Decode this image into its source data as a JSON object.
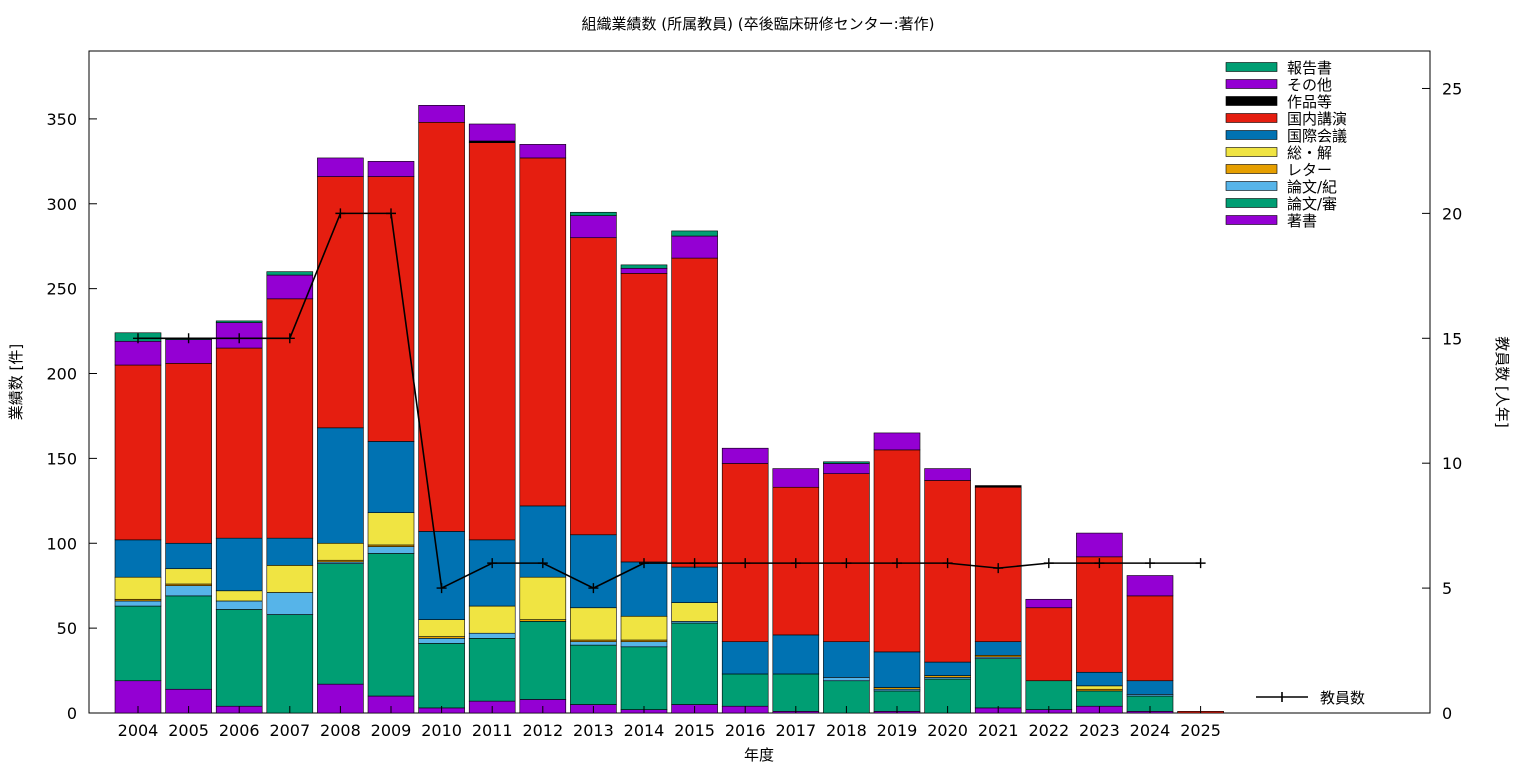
{
  "chart_data": {
    "type": "bar",
    "stacked": true,
    "title": "組織業績数 (所属教員) (卒後臨床研修センター:著作)",
    "xlabel": "年度",
    "ylabel": "業績数 [件]",
    "y2label": "教員数 [人年]",
    "ylim": [
      0,
      390
    ],
    "y2lim": [
      0,
      26.5
    ],
    "yticks": [
      0,
      50,
      100,
      150,
      200,
      250,
      300,
      350
    ],
    "y2ticks": [
      0,
      5,
      10,
      15,
      20,
      25
    ],
    "grid": false,
    "legend_position": "top-right",
    "categories": [
      "2004",
      "2005",
      "2006",
      "2007",
      "2008",
      "2009",
      "2010",
      "2011",
      "2012",
      "2013",
      "2014",
      "2015",
      "2016",
      "2017",
      "2018",
      "2019",
      "2020",
      "2021",
      "2022",
      "2023",
      "2024",
      "2025"
    ],
    "series": [
      {
        "name": "著書",
        "color": "#9400d3",
        "values": [
          19,
          14,
          4,
          0,
          17,
          10,
          3,
          7,
          8,
          5,
          2,
          5,
          4,
          1,
          0,
          1,
          0,
          3,
          2,
          4,
          1,
          0
        ]
      },
      {
        "name": "論文/審",
        "color": "#009e73",
        "values": [
          44,
          55,
          57,
          58,
          71,
          84,
          38,
          37,
          46,
          35,
          37,
          48,
          19,
          22,
          19,
          12,
          20,
          29,
          17,
          9,
          9,
          0
        ]
      },
      {
        "name": "論文/紀",
        "color": "#56b4e9",
        "values": [
          3,
          6,
          5,
          13,
          1,
          4,
          3,
          3,
          0,
          2,
          3,
          1,
          0,
          0,
          2,
          1,
          1,
          1,
          0,
          0,
          1,
          0
        ]
      },
      {
        "name": "レター",
        "color": "#e69f00",
        "values": [
          1,
          1,
          0,
          0,
          1,
          1,
          1,
          0,
          1,
          1,
          1,
          0,
          0,
          0,
          0,
          1,
          1,
          1,
          0,
          1,
          0,
          0
        ]
      },
      {
        "name": "総・解",
        "color": "#f0e442",
        "values": [
          13,
          9,
          6,
          16,
          10,
          19,
          10,
          16,
          25,
          19,
          14,
          11,
          0,
          0,
          0,
          0,
          0,
          0,
          0,
          2,
          0,
          0
        ]
      },
      {
        "name": "国際会議",
        "color": "#0072b2",
        "values": [
          22,
          15,
          31,
          16,
          68,
          42,
          52,
          39,
          42,
          43,
          32,
          21,
          19,
          23,
          21,
          21,
          8,
          8,
          0,
          8,
          8,
          0
        ]
      },
      {
        "name": "国内講演",
        "color": "#e51e10",
        "values": [
          103,
          106,
          112,
          141,
          148,
          156,
          241,
          234,
          205,
          175,
          170,
          182,
          105,
          87,
          99,
          119,
          107,
          91,
          43,
          68,
          50,
          1
        ]
      },
      {
        "name": "作品等",
        "color": "#000000",
        "values": [
          0,
          0,
          0,
          0,
          0,
          0,
          0,
          1,
          0,
          0,
          0,
          0,
          0,
          0,
          0,
          0,
          0,
          1,
          0,
          0,
          0,
          0
        ]
      },
      {
        "name": "その他",
        "color": "#9400d3",
        "values": [
          14,
          14,
          15,
          14,
          11,
          9,
          10,
          10,
          8,
          13,
          3,
          13,
          9,
          11,
          6,
          10,
          7,
          0,
          5,
          14,
          12,
          0
        ]
      },
      {
        "name": "報告書",
        "color": "#009e73",
        "values": [
          5,
          1,
          1,
          2,
          0,
          0,
          0,
          0,
          0,
          2,
          2,
          3,
          0,
          0,
          1,
          0,
          0,
          0,
          0,
          0,
          0,
          0
        ]
      }
    ],
    "line_series": {
      "name": "教員数",
      "color": "#000000",
      "values": [
        15,
        15,
        15,
        15,
        20,
        20,
        5,
        6,
        6,
        5,
        6,
        6,
        6,
        6,
        6,
        6,
        6,
        5.8,
        6,
        6,
        6,
        6
      ]
    }
  }
}
